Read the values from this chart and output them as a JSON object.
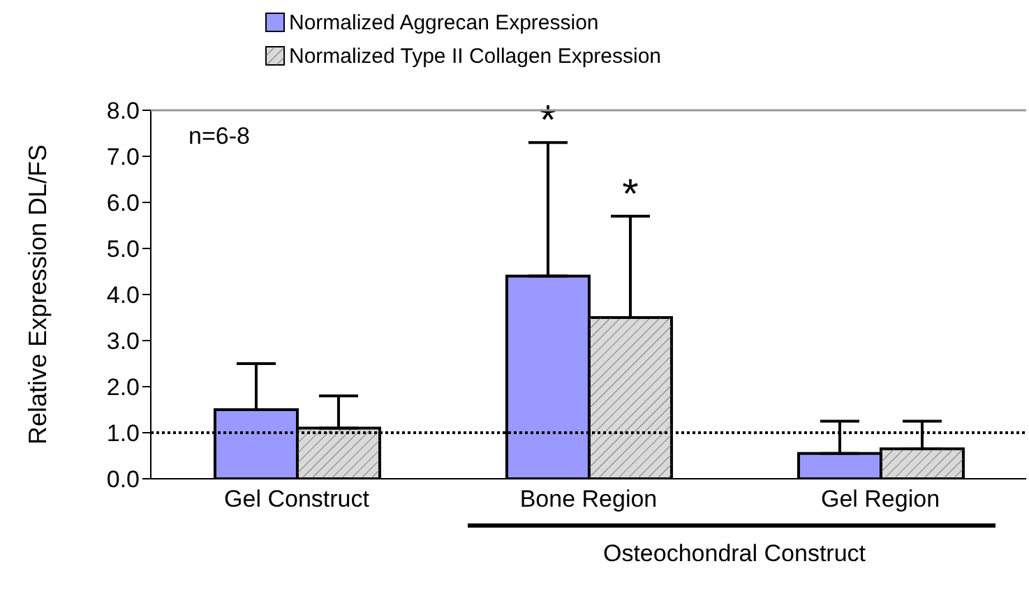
{
  "chart_data": {
    "type": "bar",
    "ylabel": "Relative Expression DL/FS",
    "categories": [
      "Gel Construct",
      "Bone Region",
      "Gel Region"
    ],
    "series": [
      {
        "name": "Normalized Aggrecan Expression",
        "color": "#9999ff",
        "values": [
          1.5,
          4.4,
          0.55
        ],
        "errors": [
          1.0,
          2.9,
          0.7
        ]
      },
      {
        "name": "Normalized Type II Collagen Expression",
        "color": "#d9d9d9",
        "values": [
          1.1,
          3.5,
          0.65
        ],
        "errors": [
          0.7,
          2.2,
          0.6
        ]
      }
    ],
    "ylim": [
      0,
      8
    ],
    "yticks": [
      {
        "value": 0,
        "label": "0.0"
      },
      {
        "value": 1,
        "label": "1.0"
      },
      {
        "value": 2,
        "label": "2.0"
      },
      {
        "value": 3,
        "label": "3.0"
      },
      {
        "value": 4,
        "label": "4.0"
      },
      {
        "value": 5,
        "label": "5.0"
      },
      {
        "value": 6,
        "label": "6.0"
      },
      {
        "value": 7,
        "label": "7.0"
      },
      {
        "value": 8,
        "label": "8.0"
      }
    ],
    "ref_lines": [
      {
        "axis": "y",
        "value": 1,
        "line_style": "dotted"
      }
    ],
    "annotations": [
      "n=6-8",
      "*",
      "*",
      "Osteochondral Construct"
    ],
    "legend": "top",
    "grid": false
  }
}
